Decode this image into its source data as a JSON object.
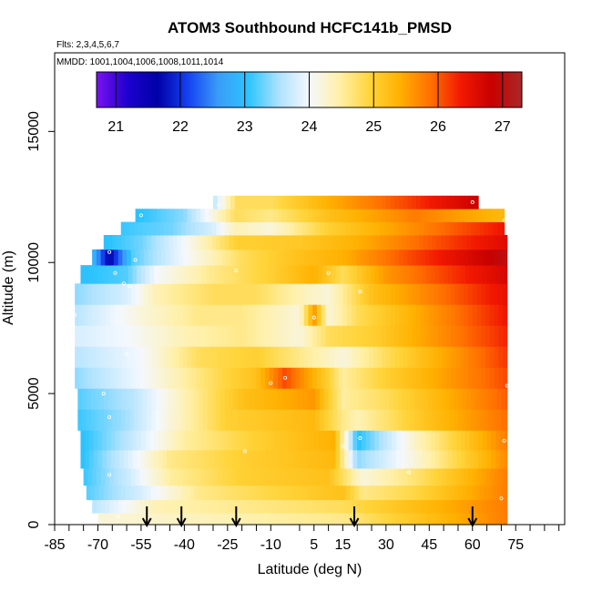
{
  "chart_data": {
    "type": "heatmap",
    "title": "ATOM3 Southbound HCFC141b_PMSD",
    "flights_label": "Flts: 2,3,4,5,6,7",
    "dates_label": "MMDD: 1001,1004,1006,1008,1011,1014",
    "xlabel": "Latitude (deg N)",
    "ylabel": "Altitude (m)",
    "xlim": [
      -85,
      92
    ],
    "ylim": [
      0,
      18000
    ],
    "x_ticks": [
      "-85",
      "-70",
      "-55",
      "-40",
      "-25",
      "-10",
      "5",
      "15",
      "30",
      "45",
      "60",
      "75"
    ],
    "x_tick_values": [
      -85,
      -70,
      -55,
      -40,
      -25,
      -10,
      5,
      15,
      30,
      45,
      60,
      75
    ],
    "x_minor_tick_values": [
      -80,
      -75,
      -65,
      -60,
      -50,
      -45,
      -35,
      -30,
      -20,
      -15,
      0,
      10,
      20,
      25,
      35,
      40,
      50,
      55,
      65,
      70,
      80,
      85,
      90
    ],
    "y_ticks": [
      "0",
      "5000",
      "10000",
      "15000"
    ],
    "y_tick_values": [
      0,
      5000,
      10000,
      15000
    ],
    "colorbar": {
      "range": [
        20.7,
        27.3
      ],
      "labels": [
        "21",
        "22",
        "23",
        "24",
        "25",
        "26",
        "27"
      ],
      "values": [
        21,
        22,
        23,
        24,
        25,
        26,
        27
      ],
      "stops": [
        "#7a12f0",
        "#1f00d0",
        "#0000a8",
        "#1440f0",
        "#3a9cf8",
        "#2cc4ff",
        "#aee2ff",
        "#f4f8ff",
        "#fff0a8",
        "#ffd43a",
        "#ffb000",
        "#ff7000",
        "#f21800",
        "#c80000",
        "#a82828"
      ]
    },
    "arrows_lat": [
      -53,
      -41,
      -22,
      19,
      60
    ],
    "heatmap_rows": [
      {
        "alt": 200,
        "lat": [
          -70,
          15,
          72
        ],
        "val": [
          24.2,
          24.6,
          25.8
        ]
      },
      {
        "alt": 700,
        "lat": [
          -72,
          -50,
          15,
          72
        ],
        "val": [
          23.6,
          24.4,
          24.8,
          25.8
        ]
      },
      {
        "alt": 1200,
        "lat": [
          -74,
          -55,
          -35,
          15,
          22,
          40,
          72
        ],
        "val": [
          23.2,
          23.8,
          24.6,
          25.2,
          24.6,
          24.9,
          25.8
        ]
      },
      {
        "alt": 1800,
        "lat": [
          -75,
          -60,
          -45,
          -20,
          10,
          22,
          40,
          72
        ],
        "val": [
          23.1,
          23.7,
          24.5,
          25.0,
          25.2,
          24.2,
          24.7,
          25.8
        ]
      },
      {
        "alt": 2500,
        "lat": [
          -76,
          -60,
          -45,
          -20,
          12,
          20,
          40,
          72
        ],
        "val": [
          23.0,
          23.8,
          24.6,
          25.0,
          25.3,
          23.4,
          24.2,
          25.7
        ]
      },
      {
        "alt": 3200,
        "lat": [
          -76,
          -60,
          -40,
          -15,
          12,
          20,
          40,
          72
        ],
        "val": [
          23.0,
          23.6,
          24.5,
          25.0,
          25.4,
          23.0,
          24.3,
          25.8
        ]
      },
      {
        "alt": 4000,
        "lat": [
          -77,
          -60,
          -45,
          -25,
          5,
          15,
          20,
          45,
          72
        ],
        "val": [
          23.1,
          23.5,
          24.2,
          25.0,
          25.3,
          24.6,
          24.4,
          25.2,
          25.9
        ]
      },
      {
        "alt": 4800,
        "lat": [
          -77,
          -58,
          -40,
          -20,
          5,
          15,
          30,
          72
        ],
        "val": [
          23.2,
          23.6,
          24.4,
          25.2,
          25.6,
          24.5,
          24.8,
          26.0
        ]
      },
      {
        "alt": 5600,
        "lat": [
          -78,
          -55,
          -30,
          -15,
          -5,
          10,
          15,
          30,
          72
        ],
        "val": [
          23.4,
          24.0,
          24.8,
          25.2,
          26.1,
          25.0,
          24.5,
          25.0,
          26.1
        ]
      },
      {
        "alt": 6400,
        "lat": [
          -78,
          -55,
          -35,
          -15,
          0,
          15,
          30,
          72
        ],
        "val": [
          23.6,
          24.0,
          24.8,
          25.0,
          24.6,
          24.2,
          24.8,
          26.2
        ]
      },
      {
        "alt": 7200,
        "lat": [
          -78,
          -60,
          -40,
          -20,
          0,
          10,
          25,
          72
        ],
        "val": [
          23.8,
          24.0,
          24.4,
          24.6,
          24.2,
          24.8,
          25.0,
          26.3
        ]
      },
      {
        "alt": 8000,
        "lat": [
          -78,
          -55,
          -35,
          -20,
          0,
          5,
          10,
          20,
          72
        ],
        "val": [
          23.6,
          24.2,
          24.6,
          24.6,
          24.2,
          25.6,
          24.2,
          24.8,
          26.4
        ]
      },
      {
        "alt": 8800,
        "lat": [
          -78,
          -60,
          -50,
          -30,
          -15,
          0,
          10,
          25,
          72
        ],
        "val": [
          23.4,
          23.8,
          24.4,
          24.8,
          24.8,
          24.4,
          24.2,
          25.2,
          26.5
        ]
      },
      {
        "alt": 9600,
        "lat": [
          -76,
          -60,
          -50,
          -30,
          -10,
          5,
          15,
          30,
          72
        ],
        "val": [
          23.0,
          23.2,
          24.0,
          24.6,
          25.0,
          25.4,
          24.8,
          25.6,
          26.7
        ]
      },
      {
        "alt": 10200,
        "lat": [
          -72,
          -66,
          -58,
          -40,
          -20,
          0,
          15,
          35,
          72
        ],
        "val": [
          23.0,
          21.6,
          23.2,
          24.0,
          24.8,
          25.2,
          25.4,
          26.0,
          27.0
        ]
      },
      {
        "alt": 10800,
        "lat": [
          -68,
          -55,
          -40,
          -22,
          0,
          20,
          45,
          72
        ],
        "val": [
          23.0,
          23.3,
          24.0,
          25.0,
          25.1,
          25.4,
          26.0,
          26.6
        ]
      },
      {
        "alt": 11300,
        "lat": [
          -62,
          -45,
          -30,
          -22,
          -10,
          10,
          45,
          71
        ],
        "val": [
          23.1,
          23.3,
          23.8,
          24.4,
          24.2,
          25.0,
          25.8,
          26.4
        ]
      },
      {
        "alt": 11800,
        "lat": [
          -57,
          -40,
          -22,
          -10,
          10,
          40,
          71
        ],
        "val": [
          23.0,
          23.4,
          24.8,
          24.6,
          25.2,
          25.8,
          25.3
        ]
      },
      {
        "alt": 12300,
        "lat": [
          -30,
          -22,
          -10,
          10,
          40,
          62
        ],
        "val": [
          23.6,
          24.8,
          24.8,
          25.4,
          26.2,
          26.8
        ]
      }
    ],
    "samples": [
      {
        "lat": -71,
        "alt": 10800
      },
      {
        "lat": -68,
        "alt": 11200
      },
      {
        "lat": -66,
        "alt": 10400
      },
      {
        "lat": -64,
        "alt": 9600
      },
      {
        "lat": -61,
        "alt": 9200
      },
      {
        "lat": -59,
        "alt": 9100
      },
      {
        "lat": -57,
        "alt": 10100
      },
      {
        "lat": -55,
        "alt": 11800
      },
      {
        "lat": -68,
        "alt": 5000
      },
      {
        "lat": -66,
        "alt": 4100
      },
      {
        "lat": -78,
        "alt": 8000
      },
      {
        "lat": -80,
        "alt": 2700
      },
      {
        "lat": -66,
        "alt": 1900
      },
      {
        "lat": -63,
        "alt": 300
      },
      {
        "lat": -60,
        "alt": 6500
      },
      {
        "lat": -22,
        "alt": 9700
      },
      {
        "lat": -5,
        "alt": 5600
      },
      {
        "lat": -10,
        "alt": 5400
      },
      {
        "lat": -19,
        "alt": 2800
      },
      {
        "lat": 5,
        "alt": 7900
      },
      {
        "lat": 10,
        "alt": 9600
      },
      {
        "lat": 15,
        "alt": 3000
      },
      {
        "lat": 21,
        "alt": 3300
      },
      {
        "lat": 21,
        "alt": 8900
      },
      {
        "lat": 38,
        "alt": 2000
      },
      {
        "lat": 70,
        "alt": 1000
      },
      {
        "lat": 71,
        "alt": 3200
      },
      {
        "lat": 72,
        "alt": 5300
      },
      {
        "lat": 71,
        "alt": 11600
      },
      {
        "lat": -28,
        "alt": 12200
      },
      {
        "lat": 60,
        "alt": 12300
      }
    ]
  }
}
